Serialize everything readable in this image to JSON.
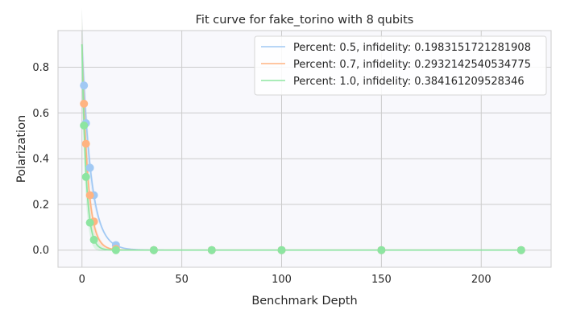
{
  "chart_data": {
    "type": "scatter",
    "title": "Fit curve for fake_torino with 8 qubits",
    "xlabel": "Benchmark Depth",
    "ylabel": "Polarization",
    "xlim": [
      -12,
      235
    ],
    "ylim": [
      -0.075,
      0.96
    ],
    "xticks": [
      0,
      50,
      100,
      150,
      200
    ],
    "yticks": [
      0.0,
      0.2,
      0.4,
      0.6,
      0.8
    ],
    "xtick_labels": [
      "0",
      "50",
      "100",
      "150",
      "200"
    ],
    "ytick_labels": [
      "0.0",
      "0.2",
      "0.4",
      "0.6",
      "0.8"
    ],
    "grid": true,
    "legend_position": "top-right",
    "x": [
      1,
      2,
      4,
      6,
      17,
      36,
      65,
      100,
      150,
      220
    ],
    "series": [
      {
        "name": "Percent: 0.5, infidelity: 0.1983151721281908",
        "color": "#a1c9f4",
        "points": [
          0.72,
          0.555,
          0.36,
          0.24,
          0.022,
          0.0,
          0.0,
          0.0,
          0.0,
          0.0
        ],
        "fit_amplitude": 0.9,
        "fit_decay": 0.8017
      },
      {
        "name": "Percent: 0.7, infidelity: 0.2932142540534775",
        "color": "#ffb482",
        "points": [
          0.64,
          0.465,
          0.24,
          0.125,
          0.005,
          0.0,
          0.0,
          0.0,
          0.0,
          0.0
        ],
        "fit_amplitude": 0.9,
        "fit_decay": 0.7068
      },
      {
        "name": "Percent: 1.0, infidelity: 0.384161209528346",
        "color": "#8de5a1",
        "points": [
          0.545,
          0.32,
          0.12,
          0.045,
          0.0,
          0.0,
          0.0,
          0.0,
          0.0,
          0.0
        ],
        "fit_amplitude": 0.9,
        "fit_decay": 0.6158
      }
    ]
  }
}
